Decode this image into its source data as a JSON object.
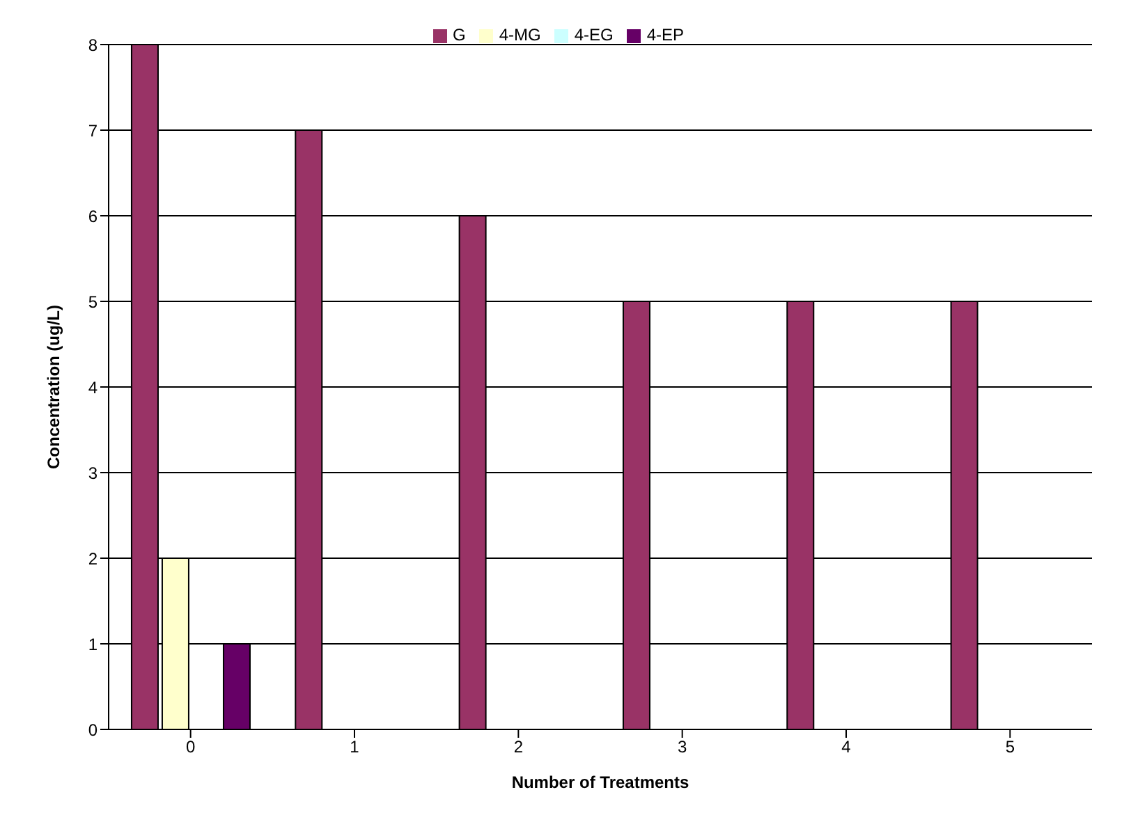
{
  "chart_data": {
    "type": "bar",
    "xlabel": "Number of Treatments",
    "ylabel": "Concentration (ug/L)",
    "categories": [
      "0",
      "1",
      "2",
      "3",
      "4",
      "5"
    ],
    "series": [
      {
        "name": "G",
        "color": "#993366",
        "values": [
          8,
          7,
          6,
          5,
          5,
          5
        ]
      },
      {
        "name": "4-MG",
        "color": "#ffffcc",
        "values": [
          2,
          0,
          0,
          0,
          0,
          0
        ]
      },
      {
        "name": "4-EG",
        "color": "#ccffff",
        "values": [
          0,
          0,
          0,
          0,
          0,
          0
        ]
      },
      {
        "name": "4-EP",
        "color": "#660066",
        "values": [
          1,
          0,
          0,
          0,
          0,
          0
        ]
      }
    ],
    "ylim": [
      0,
      8
    ],
    "yticks": [
      0,
      1,
      2,
      3,
      4,
      5,
      6,
      7,
      8
    ],
    "grid": "y",
    "legend": "top"
  }
}
